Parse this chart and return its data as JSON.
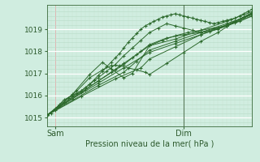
{
  "bg_color": "#d0ede0",
  "plot_bg_color": "#d0ede0",
  "line_color": "#2d6a2d",
  "xlabel": "Pression niveau de la mer( hPa )",
  "yticks": [
    1015,
    1016,
    1017,
    1018,
    1019
  ],
  "ylim": [
    1014.6,
    1020.1
  ],
  "xlim": [
    0,
    48
  ],
  "sam_x": 2,
  "dim_x": 32,
  "sam_label": "Sam",
  "dim_label": "Dim",
  "series": [
    {
      "x": [
        0,
        1,
        2,
        3,
        4,
        5,
        6,
        7,
        8,
        9,
        10,
        11,
        12,
        13,
        14,
        15,
        16,
        17,
        18,
        19,
        20,
        21,
        22,
        23,
        24,
        25,
        26,
        27,
        28,
        29,
        30,
        31,
        32,
        33,
        34,
        35,
        36,
        37,
        38,
        39,
        40,
        41,
        42,
        43,
        44,
        45,
        46,
        47,
        48
      ],
      "y": [
        1015.1,
        1015.2,
        1015.4,
        1015.6,
        1015.8,
        1015.9,
        1016.0,
        1016.1,
        1016.2,
        1016.35,
        1016.5,
        1016.7,
        1016.9,
        1017.1,
        1017.3,
        1017.5,
        1017.7,
        1017.9,
        1018.15,
        1018.4,
        1018.6,
        1018.8,
        1019.0,
        1019.15,
        1019.25,
        1019.35,
        1019.45,
        1019.55,
        1019.6,
        1019.65,
        1019.7,
        1019.65,
        1019.6,
        1019.55,
        1019.5,
        1019.45,
        1019.4,
        1019.35,
        1019.3,
        1019.25,
        1019.3,
        1019.35,
        1019.4,
        1019.45,
        1019.5,
        1019.6,
        1019.7,
        1019.8,
        1019.9
      ]
    },
    {
      "x": [
        0,
        2,
        4,
        6,
        8,
        10,
        12,
        14,
        16,
        18,
        20,
        22,
        24,
        26,
        28,
        30,
        32,
        34,
        36,
        38,
        40,
        42,
        44,
        46,
        48
      ],
      "y": [
        1015.1,
        1015.35,
        1015.65,
        1015.95,
        1016.2,
        1016.5,
        1016.8,
        1017.1,
        1017.4,
        1017.8,
        1018.15,
        1018.5,
        1018.85,
        1019.05,
        1019.25,
        1019.15,
        1019.05,
        1018.95,
        1018.85,
        1018.9,
        1019.0,
        1019.15,
        1019.35,
        1019.55,
        1019.75
      ]
    },
    {
      "x": [
        0,
        3,
        6,
        9,
        12,
        15,
        18,
        21,
        24,
        27,
        30,
        33,
        36,
        39,
        42,
        45,
        48
      ],
      "y": [
        1015.1,
        1015.5,
        1015.85,
        1016.25,
        1016.65,
        1017.05,
        1017.45,
        1017.85,
        1018.25,
        1018.5,
        1018.7,
        1018.85,
        1018.95,
        1019.05,
        1019.15,
        1019.35,
        1019.6
      ]
    },
    {
      "x": [
        0,
        4,
        8,
        12,
        16,
        18,
        20,
        22,
        24,
        28,
        32,
        36,
        40,
        44,
        48
      ],
      "y": [
        1015.1,
        1015.65,
        1016.15,
        1016.65,
        1017.15,
        1017.4,
        1017.7,
        1018.0,
        1018.3,
        1018.6,
        1018.75,
        1018.85,
        1019.05,
        1019.3,
        1019.7
      ]
    },
    {
      "x": [
        0,
        6,
        12,
        18,
        24,
        30,
        36,
        42,
        48
      ],
      "y": [
        1015.1,
        1015.85,
        1016.55,
        1017.25,
        1017.95,
        1018.35,
        1018.75,
        1019.15,
        1019.6
      ]
    },
    {
      "x": [
        0,
        8,
        16,
        22,
        24,
        30,
        36,
        42,
        48
      ],
      "y": [
        1015.1,
        1015.95,
        1016.75,
        1017.25,
        1017.65,
        1018.2,
        1018.75,
        1019.2,
        1019.7
      ]
    },
    {
      "x": [
        0,
        12,
        18,
        21,
        24,
        30,
        36,
        42,
        48
      ],
      "y": [
        1015.1,
        1016.45,
        1017.05,
        1017.55,
        1018.05,
        1018.45,
        1018.85,
        1019.25,
        1019.65
      ]
    },
    {
      "x": [
        0,
        6,
        10,
        13,
        15,
        18,
        20,
        24,
        30,
        36,
        42,
        48
      ],
      "y": [
        1015.1,
        1016.05,
        1016.95,
        1017.5,
        1017.2,
        1016.8,
        1017.0,
        1018.25,
        1018.55,
        1018.95,
        1019.35,
        1019.8
      ]
    },
    {
      "x": [
        0,
        4,
        7,
        10,
        13,
        15,
        17,
        19,
        21,
        23,
        24,
        28,
        32,
        36,
        40,
        44,
        48
      ],
      "y": [
        1015.1,
        1015.7,
        1016.2,
        1016.8,
        1017.15,
        1017.35,
        1017.35,
        1017.25,
        1017.15,
        1017.05,
        1016.95,
        1017.45,
        1017.95,
        1018.45,
        1018.85,
        1019.35,
        1019.75
      ]
    }
  ]
}
